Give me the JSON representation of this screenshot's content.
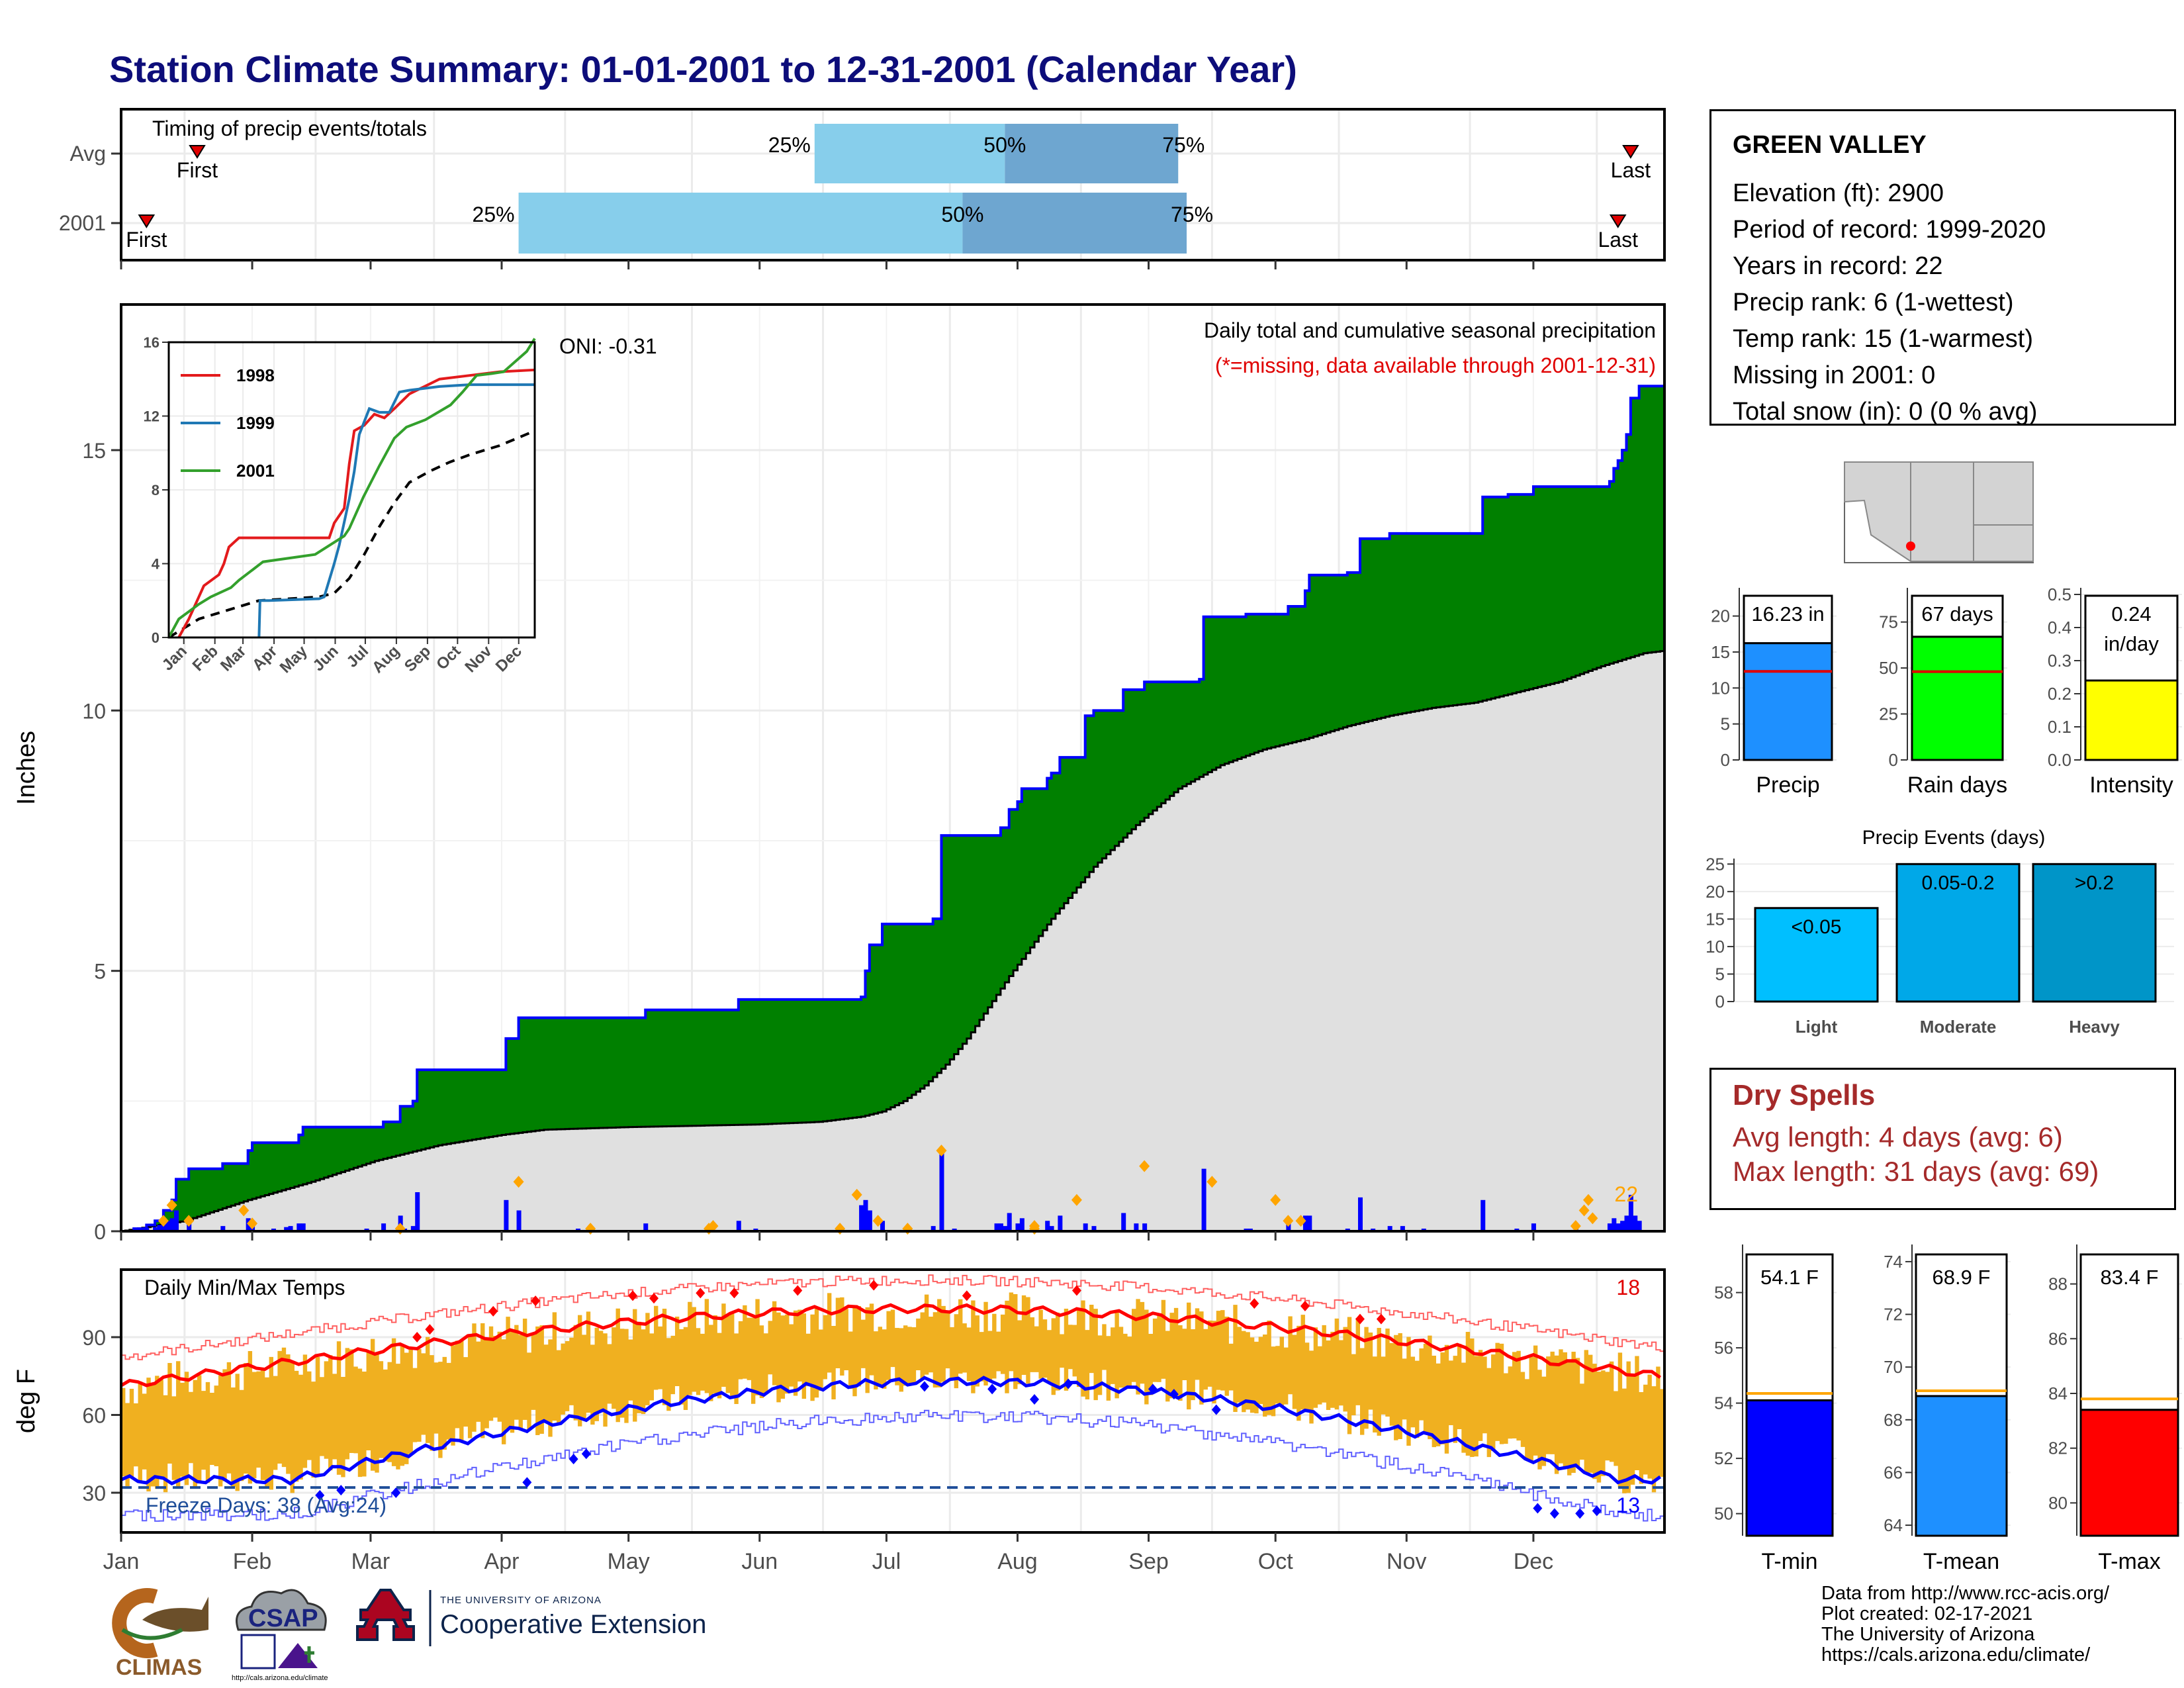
{
  "title": "Station Climate Summary: 01-01-2001 to 12-31-2001 (Calendar Year)",
  "colors": {
    "cum_2001": "#008000",
    "cum_avg": "#e0e0e0",
    "daily_bar": "#0000ff",
    "tmax": "#ff0000",
    "tmin": "#0000ff",
    "temp_bar": "#f0b020",
    "q_light": "#87ceeb",
    "q_dark": "#6ea6d0",
    "freeze": "#1f4e99"
  },
  "timing": {
    "title": "Timing of precip events/totals",
    "rows": [
      {
        "label": "Avg",
        "first_day": 18,
        "q25_day": 164,
        "q50_day": 209,
        "q75_day": 250,
        "last_day": 357,
        "first_label": "First",
        "last_label": "Last",
        "q25_label": "25%",
        "q50_label": "50%",
        "q75_label": "75%"
      },
      {
        "label": "2001",
        "first_day": 6,
        "q25_day": 94,
        "q50_day": 199,
        "q75_day": 252,
        "last_day": 354,
        "first_label": "First",
        "last_label": "Last",
        "q25_label": "25%",
        "q50_label": "50%",
        "q75_label": "75%"
      }
    ]
  },
  "precip": {
    "ylabel": "Inches",
    "yticks": [
      0,
      5,
      10,
      15
    ],
    "ylim": [
      0,
      17.5
    ],
    "oni": "ONI: -0.31",
    "subtitle": "Daily total and cumulative seasonal precipitation",
    "missing_note": "(*=missing, data available through 2001-12-31)",
    "extreme_count": "22",
    "cum2001_steps": [
      [
        0,
        0
      ],
      [
        3,
        0.05
      ],
      [
        6,
        0.12
      ],
      [
        8,
        0.2
      ],
      [
        10,
        0.4
      ],
      [
        12,
        0.6
      ],
      [
        13,
        1.0
      ],
      [
        16,
        1.2
      ],
      [
        24,
        1.3
      ],
      [
        30,
        1.55
      ],
      [
        31,
        1.7
      ],
      [
        42,
        1.85
      ],
      [
        43,
        2.0
      ],
      [
        62,
        2.1
      ],
      [
        66,
        2.4
      ],
      [
        69,
        2.5
      ],
      [
        70,
        3.1
      ],
      [
        91,
        3.7
      ],
      [
        94,
        4.1
      ],
      [
        124,
        4.25
      ],
      [
        146,
        4.45
      ],
      [
        175,
        4.5
      ],
      [
        176,
        5.0
      ],
      [
        177,
        5.5
      ],
      [
        180,
        5.9
      ],
      [
        192,
        6.0
      ],
      [
        194,
        7.6
      ],
      [
        207,
        7.6
      ],
      [
        208,
        7.75
      ],
      [
        210,
        8.1
      ],
      [
        212,
        8.25
      ],
      [
        213,
        8.5
      ],
      [
        219,
        8.7
      ],
      [
        220,
        8.8
      ],
      [
        222,
        9.1
      ],
      [
        228,
        9.9
      ],
      [
        230,
        10.0
      ],
      [
        237,
        10.4
      ],
      [
        242,
        10.55
      ],
      [
        255,
        10.6
      ],
      [
        256,
        11.8
      ],
      [
        266,
        11.85
      ],
      [
        276,
        12.0
      ],
      [
        280,
        12.3
      ],
      [
        281,
        12.6
      ],
      [
        290,
        12.65
      ],
      [
        293,
        13.3
      ],
      [
        300,
        13.4
      ],
      [
        307,
        13.4
      ],
      [
        322,
        14.1
      ],
      [
        328,
        14.15
      ],
      [
        334,
        14.3
      ],
      [
        341,
        14.3
      ],
      [
        351,
        14.3
      ],
      [
        352,
        14.4
      ],
      [
        353,
        14.65
      ],
      [
        354,
        14.8
      ],
      [
        355,
        15.0
      ],
      [
        356,
        15.3
      ],
      [
        357,
        16.0
      ],
      [
        359,
        16.23
      ],
      [
        365,
        16.23
      ]
    ],
    "cumavg_knots": [
      [
        0,
        0
      ],
      [
        15,
        0.2
      ],
      [
        30,
        0.6
      ],
      [
        45,
        0.95
      ],
      [
        60,
        1.35
      ],
      [
        75,
        1.65
      ],
      [
        90,
        1.85
      ],
      [
        100,
        1.95
      ],
      [
        120,
        2.0
      ],
      [
        150,
        2.05
      ],
      [
        165,
        2.1
      ],
      [
        175,
        2.2
      ],
      [
        180,
        2.3
      ],
      [
        185,
        2.5
      ],
      [
        190,
        2.8
      ],
      [
        195,
        3.2
      ],
      [
        200,
        3.7
      ],
      [
        205,
        4.3
      ],
      [
        210,
        4.9
      ],
      [
        220,
        6.0
      ],
      [
        230,
        7.0
      ],
      [
        240,
        7.8
      ],
      [
        250,
        8.5
      ],
      [
        260,
        8.95
      ],
      [
        270,
        9.25
      ],
      [
        280,
        9.45
      ],
      [
        290,
        9.7
      ],
      [
        300,
        9.9
      ],
      [
        310,
        10.05
      ],
      [
        320,
        10.15
      ],
      [
        330,
        10.35
      ],
      [
        340,
        10.55
      ],
      [
        350,
        10.85
      ],
      [
        360,
        11.1
      ],
      [
        365,
        11.15
      ]
    ],
    "daily": [
      [
        6,
        0.07
      ],
      [
        8,
        0.08
      ],
      [
        9,
        0.12
      ],
      [
        10,
        0.18
      ],
      [
        11,
        0.2
      ],
      [
        12,
        0.25
      ],
      [
        13,
        0.4
      ],
      [
        16,
        0.2
      ],
      [
        24,
        0.1
      ],
      [
        30,
        0.25
      ],
      [
        31,
        0.15
      ],
      [
        36,
        0.05
      ],
      [
        39,
        0.08
      ],
      [
        40,
        0.1
      ],
      [
        42,
        0.15
      ],
      [
        43,
        0.15
      ],
      [
        58,
        0.05
      ],
      [
        62,
        0.15
      ],
      [
        66,
        0.3
      ],
      [
        67,
        0.05
      ],
      [
        69,
        0.1
      ],
      [
        70,
        0.75
      ],
      [
        91,
        0.6
      ],
      [
        94,
        0.4
      ],
      [
        108,
        0.05
      ],
      [
        124,
        0.15
      ],
      [
        146,
        0.2
      ],
      [
        150,
        0.05
      ],
      [
        175,
        0.5
      ],
      [
        176,
        0.6
      ],
      [
        177,
        0.4
      ],
      [
        180,
        0.2
      ],
      [
        186,
        0.05
      ],
      [
        192,
        0.1
      ],
      [
        194,
        1.6
      ],
      [
        197,
        0.05
      ],
      [
        207,
        0.15
      ],
      [
        208,
        0.15
      ],
      [
        209,
        0.1
      ],
      [
        210,
        0.35
      ],
      [
        212,
        0.15
      ],
      [
        213,
        0.25
      ],
      [
        219,
        0.2
      ],
      [
        220,
        0.1
      ],
      [
        222,
        0.3
      ],
      [
        228,
        0.15
      ],
      [
        230,
        0.1
      ],
      [
        237,
        0.35
      ],
      [
        240,
        0.15
      ],
      [
        242,
        0.15
      ],
      [
        256,
        1.2
      ],
      [
        266,
        0.05
      ],
      [
        267,
        0.05
      ],
      [
        276,
        0.15
      ],
      [
        280,
        0.3
      ],
      [
        281,
        0.3
      ],
      [
        290,
        0.05
      ],
      [
        293,
        0.65
      ],
      [
        296,
        0.05
      ],
      [
        300,
        0.1
      ],
      [
        303,
        0.1
      ],
      [
        308,
        0.05
      ],
      [
        322,
        0.6
      ],
      [
        330,
        0.05
      ],
      [
        334,
        0.15
      ],
      [
        344,
        0.05
      ],
      [
        352,
        0.15
      ],
      [
        353,
        0.25
      ],
      [
        354,
        0.15
      ],
      [
        355,
        0.2
      ],
      [
        356,
        0.3
      ],
      [
        357,
        0.7
      ],
      [
        358,
        0.3
      ],
      [
        359,
        0.2
      ]
    ],
    "extreme_days": [
      [
        10,
        0.2
      ],
      [
        12,
        0.5
      ],
      [
        16,
        0.2
      ],
      [
        29,
        0.4
      ],
      [
        31,
        0.15
      ],
      [
        66,
        0.05
      ],
      [
        94,
        0.95
      ],
      [
        111,
        0.05
      ],
      [
        139,
        0.05
      ],
      [
        140,
        0.1
      ],
      [
        170,
        0.05
      ],
      [
        174,
        0.7
      ],
      [
        179,
        0.2
      ],
      [
        186,
        0.05
      ],
      [
        194,
        1.55
      ],
      [
        216,
        0.05
      ],
      [
        216,
        0.1
      ],
      [
        226,
        0.6
      ],
      [
        242,
        1.25
      ],
      [
        258,
        0.95
      ],
      [
        273,
        0.6
      ],
      [
        276,
        0.2
      ],
      [
        279,
        0.2
      ],
      [
        344,
        0.1
      ],
      [
        346,
        0.4
      ],
      [
        347,
        0.6
      ],
      [
        348,
        0.25
      ]
    ]
  },
  "inset": {
    "yticks": [
      0,
      4,
      8,
      12,
      16
    ],
    "months": [
      "Jan",
      "Feb",
      "Mar",
      "Apr",
      "May",
      "Jun",
      "Jul",
      "Aug",
      "Sep",
      "Oct",
      "Nov",
      "Dec"
    ],
    "series": [
      {
        "name": "1998",
        "color": "#e31a1c",
        "points": [
          [
            10,
            0
          ],
          [
            20,
            1
          ],
          [
            30,
            2.2
          ],
          [
            35,
            2.8
          ],
          [
            50,
            3.4
          ],
          [
            55,
            4
          ],
          [
            60,
            4.9
          ],
          [
            70,
            5.4
          ],
          [
            90,
            5.4
          ],
          [
            120,
            5.4
          ],
          [
            160,
            5.4
          ],
          [
            165,
            6.2
          ],
          [
            175,
            7
          ],
          [
            180,
            9.4
          ],
          [
            185,
            11.2
          ],
          [
            195,
            11.5
          ],
          [
            205,
            12.1
          ],
          [
            215,
            11.9
          ],
          [
            225,
            12.4
          ],
          [
            240,
            13.2
          ],
          [
            255,
            13.6
          ],
          [
            270,
            14
          ],
          [
            300,
            14.2
          ],
          [
            330,
            14.4
          ],
          [
            365,
            14.5
          ]
        ]
      },
      {
        "name": "1999",
        "color": "#1f78b4",
        "points": [
          [
            90,
            0
          ],
          [
            91,
            2
          ],
          [
            100,
            2
          ],
          [
            150,
            2.1
          ],
          [
            155,
            2.2
          ],
          [
            165,
            4
          ],
          [
            170,
            5
          ],
          [
            180,
            7.5
          ],
          [
            185,
            9
          ],
          [
            190,
            11
          ],
          [
            200,
            12.4
          ],
          [
            210,
            12.2
          ],
          [
            220,
            12.2
          ],
          [
            230,
            13.3
          ],
          [
            240,
            13.4
          ],
          [
            270,
            13.6
          ],
          [
            300,
            13.7
          ],
          [
            330,
            13.7
          ],
          [
            365,
            13.7
          ]
        ]
      },
      {
        "name": "2001",
        "color": "#33a02c",
        "points": [
          [
            0,
            0
          ],
          [
            10,
            1
          ],
          [
            30,
            1.8
          ],
          [
            42,
            2.2
          ],
          [
            62,
            2.7
          ],
          [
            70,
            3.1
          ],
          [
            94,
            4.1
          ],
          [
            146,
            4.5
          ],
          [
            175,
            5.5
          ],
          [
            180,
            5.9
          ],
          [
            194,
            7.6
          ],
          [
            210,
            9.3
          ],
          [
            225,
            10.8
          ],
          [
            237,
            11.4
          ],
          [
            256,
            11.8
          ],
          [
            281,
            12.6
          ],
          [
            293,
            13.3
          ],
          [
            307,
            14.2
          ],
          [
            322,
            14.3
          ],
          [
            334,
            14.4
          ],
          [
            357,
            15.5
          ],
          [
            365,
            16.2
          ]
        ]
      }
    ],
    "avg_points": [
      [
        0,
        0
      ],
      [
        30,
        1
      ],
      [
        60,
        1.5
      ],
      [
        90,
        2
      ],
      [
        120,
        2.1
      ],
      [
        150,
        2.2
      ],
      [
        165,
        2.4
      ],
      [
        180,
        3.2
      ],
      [
        195,
        4.5
      ],
      [
        210,
        6
      ],
      [
        225,
        7.3
      ],
      [
        240,
        8.4
      ],
      [
        260,
        9
      ],
      [
        280,
        9.5
      ],
      [
        300,
        9.9
      ],
      [
        330,
        10.4
      ],
      [
        365,
        11.2
      ]
    ]
  },
  "temps": {
    "title": "Daily Min/Max Temps",
    "ylabel": "deg F",
    "yticks": [
      30,
      60,
      90
    ],
    "ylim": [
      18,
      112
    ],
    "freeze_label": "Freeze Days: 38 (Avg:24)",
    "freeze_threshold": 32,
    "hot_count": "18",
    "cold_count": "13",
    "months": [
      "Jan",
      "Feb",
      "Mar",
      "Apr",
      "May",
      "Jun",
      "Jul",
      "Aug",
      "Sep",
      "Oct",
      "Nov",
      "Dec"
    ]
  },
  "station": {
    "name": "GREEN VALLEY",
    "lines": [
      "Elevation (ft): 2900",
      "Period of record: 1999-2020",
      "Years in record: 22",
      "Precip rank: 6 (1-wettest)",
      "Temp rank: 15 (1-warmest)",
      "Missing in 2001: 0",
      "Total snow (in): 0 (0 % avg)"
    ]
  },
  "summary_bars": [
    {
      "label": "Precip",
      "value_label": "16.23 in",
      "value": 16.23,
      "avg": 12.3,
      "yticks": [
        0,
        5,
        10,
        15,
        20
      ],
      "ymax": 23,
      "color": "#1e90ff"
    },
    {
      "label": "Rain days",
      "value_label": "67 days",
      "value": 67,
      "avg": 48,
      "yticks": [
        0,
        25,
        50,
        75
      ],
      "ymax": 90,
      "color": "#00ff00"
    },
    {
      "label": "Intensity",
      "value_label": "0.24",
      "value_label2": "in/day",
      "value": 0.24,
      "avg": 0.255,
      "yticks": [
        0.0,
        0.1,
        0.2,
        0.3,
        0.4,
        0.5
      ],
      "ymax": 0.5,
      "color": "#ffff00"
    }
  ],
  "events": {
    "title": "Precip Events (days)",
    "yticks": [
      0,
      5,
      10,
      15,
      20,
      25
    ],
    "ymax": 26,
    "bars": [
      {
        "label": "Light",
        "inner": "<0.05",
        "value": 17,
        "color": "#00bfff"
      },
      {
        "label": "Moderate",
        "inner": "0.05-0.2",
        "value": 25,
        "color": "#00a8e8"
      },
      {
        "label": "Heavy",
        "inner": ">0.2",
        "value": 25,
        "color": "#0095c8"
      }
    ]
  },
  "dry": {
    "title": "Dry Spells",
    "avg": "Avg length: 4 days (avg: 6)",
    "max": "Max length: 31 days (avg: 69)"
  },
  "temp_bars": [
    {
      "label": "T-min",
      "value_label": "54.1 F",
      "value": 54.1,
      "avg": 54.35,
      "yticks": [
        50,
        52,
        54,
        56,
        58
      ],
      "ymin": 49.2,
      "ymax": 59.5,
      "color": "#0000ff"
    },
    {
      "label": "T-mean",
      "value_label": "68.9 F",
      "value": 68.9,
      "avg": 69.1,
      "yticks": [
        64,
        66,
        68,
        70,
        72,
        74
      ],
      "ymin": 63.6,
      "ymax": 74.4,
      "color": "#1e90ff"
    },
    {
      "label": "T-max",
      "value_label": "83.4 F",
      "value": 83.4,
      "avg": 83.8,
      "yticks": [
        80,
        82,
        84,
        86,
        88
      ],
      "ymin": 78.8,
      "ymax": 89.2,
      "color": "#ff0000"
    }
  ],
  "credits": [
    "Data from http://www.rcc-acis.org/",
    "Plot created: 02-17-2021",
    "The University of Arizona",
    "https://cals.arizona.edu/climate/"
  ],
  "logos": {
    "climas": "CLIMAS",
    "csap": "CSAP",
    "csap_url": "http://cals.arizona.edu/climate",
    "ua_top": "THE UNIVERSITY OF ARIZONA",
    "ua_bottom": "Cooperative Extension"
  },
  "chart_data": [
    {
      "type": "area",
      "title": "Daily total and cumulative seasonal precipitation",
      "ylabel": "Inches",
      "x_unit": "day of year",
      "ylim": [
        0,
        17.5
      ],
      "series": [
        {
          "name": "cumulative",
          "final": 16.23
        },
        {
          "name": "daily"
        }
      ]
    },
    {
      "type": "line",
      "title": "Daily Min/Max Temps",
      "ylabel": "deg F",
      "ylim": [
        18,
        112
      ]
    },
    {
      "type": "bar",
      "categories": [
        "Precip",
        "Rain days",
        "Intensity"
      ],
      "values": [
        16.23,
        67,
        0.24
      ]
    },
    {
      "type": "bar",
      "title": "Precip Events (days)",
      "categories": [
        "Light",
        "Moderate",
        "Heavy"
      ],
      "values": [
        17,
        25,
        25
      ]
    },
    {
      "type": "bar",
      "categories": [
        "T-min",
        "T-mean",
        "T-max"
      ],
      "values": [
        54.1,
        68.9,
        83.4
      ]
    }
  ]
}
